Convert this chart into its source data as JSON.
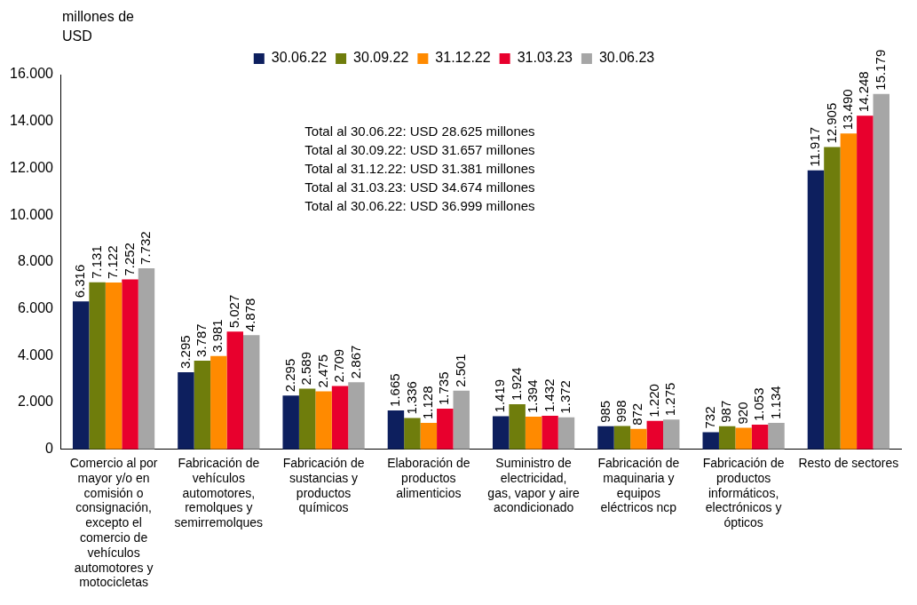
{
  "chart_data": {
    "type": "bar",
    "ylabel": "millones de USD",
    "categories": [
      "Comercio al por mayor y/o en comisión o consignación, excepto el comercio de vehículos automotores y motocicletas",
      "Fabricación de vehículos automotores, remolques y semirremolques",
      "Fabricación de sustancias y productos químicos",
      "Elaboración de productos alimenticios",
      "Suministro de electricidad, gas, vapor y aire acondicionado",
      "Fabricación de maquinaria y equipos eléctricos ncp",
      "Fabricación de productos informáticos, electrónicos y ópticos",
      "Resto de sectores"
    ],
    "series": [
      {
        "name": "30.06.22",
        "color": "#0d1f5e",
        "values": [
          6316,
          3295,
          2295,
          1665,
          1419,
          985,
          732,
          11917
        ],
        "value_labels": [
          "6.316",
          "3.295",
          "2.295",
          "1.665",
          "1.419",
          "985",
          "732",
          "11.917"
        ]
      },
      {
        "name": "30.09.22",
        "color": "#6f7d0c",
        "values": [
          7131,
          3787,
          2589,
          1336,
          1924,
          998,
          987,
          12905
        ],
        "value_labels": [
          "7.131",
          "3.787",
          "2.589",
          "1.336",
          "1.924",
          "998",
          "987",
          "12.905"
        ]
      },
      {
        "name": "31.12.22",
        "color": "#ff8a00",
        "values": [
          7122,
          3981,
          2475,
          1128,
          1394,
          872,
          920,
          13490
        ],
        "value_labels": [
          "7.122",
          "3.981",
          "2.475",
          "1.128",
          "1.394",
          "872",
          "920",
          "13.490"
        ]
      },
      {
        "name": "31.03.23",
        "color": "#e8002d",
        "values": [
          7252,
          5027,
          2709,
          1735,
          1432,
          1220,
          1053,
          14248
        ],
        "value_labels": [
          "7.252",
          "5.027",
          "2.709",
          "1.735",
          "1.432",
          "1.220",
          "1.053",
          "14.248"
        ]
      },
      {
        "name": "30.06.23",
        "color": "#a6a6a6",
        "values": [
          7732,
          4878,
          2867,
          2501,
          1372,
          1275,
          1134,
          15179
        ],
        "value_labels": [
          "7.732",
          "4.878",
          "2.867",
          "2.501",
          "1.372",
          "1.275",
          "1.134",
          "15.179"
        ]
      }
    ],
    "ylim": [
      0,
      16000
    ],
    "yticks": [
      {
        "value": 0,
        "label": "0"
      },
      {
        "value": 2000,
        "label": "2.000"
      },
      {
        "value": 4000,
        "label": "4.000"
      },
      {
        "value": 6000,
        "label": "6.000"
      },
      {
        "value": 8000,
        "label": "8.000"
      },
      {
        "value": 10000,
        "label": "10.000"
      },
      {
        "value": 12000,
        "label": "12.000"
      },
      {
        "value": 14000,
        "label": "14.000"
      },
      {
        "value": 16000,
        "label": "16.000"
      }
    ],
    "grid": false,
    "legend": "top",
    "annotations": [
      "Total al 30.06.22: USD 28.625 millones",
      "Total al 30.09.22: USD 31.657 millones",
      "Total al 31.12.22: USD 31.381 millones",
      "Total al 31.03.23: USD 34.674 millones",
      "Total al 30.06.22: USD 36.999 millones"
    ]
  }
}
